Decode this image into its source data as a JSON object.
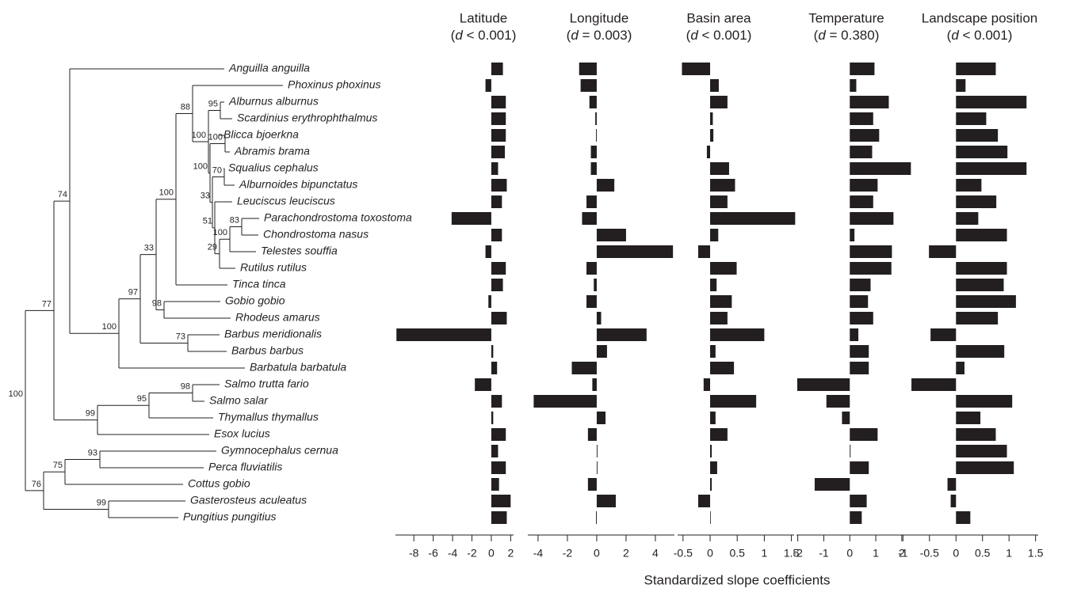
{
  "xlabel": "Standardized slope coefficients",
  "tree": {
    "support": [
      100,
      77,
      74,
      100,
      97,
      73,
      33,
      98,
      100,
      88,
      100,
      95,
      100,
      100,
      33,
      70,
      51,
      29,
      100,
      83,
      99,
      95,
      98,
      76,
      75,
      93,
      99
    ]
  },
  "chart_data": [
    {
      "type": "bar",
      "title": "Latitude",
      "subtitle": "(d < 0.001)",
      "color": "#231f20",
      "categories": [
        "Anguilla anguilla",
        "Phoxinus phoxinus",
        "Alburnus alburnus",
        "Scardinius erythrophthalmus",
        "Blicca bjoerkna",
        "Abramis brama",
        "Squalius cephalus",
        "Alburnoides bipunctatus",
        "Leuciscus leuciscus",
        "Parachondrostoma toxostoma",
        "Chondrostoma nasus",
        "Telestes souffia",
        "Rutilus rutilus",
        "Tinca tinca",
        "Gobio gobio",
        "Rhodeus amarus",
        "Barbus meridionalis",
        "Barbus barbus",
        "Barbatula barbatula",
        "Salmo trutta fario",
        "Salmo salar",
        "Thymallus thymallus",
        "Esox lucius",
        "Gymnocephalus cernua",
        "Perca fluviatilis",
        "Cottus gobio",
        "Gasterosteus aculeatus",
        "Pungitius pungitius"
      ],
      "values": [
        1.2,
        -0.6,
        1.5,
        1.5,
        1.5,
        1.4,
        0.7,
        1.6,
        1.1,
        -4.1,
        1.1,
        -0.6,
        1.5,
        1.2,
        -0.3,
        1.6,
        -9.8,
        0.2,
        0.6,
        -1.7,
        1.1,
        0.2,
        1.5,
        0.7,
        1.5,
        0.8,
        2.0,
        1.6
      ],
      "xlim": [
        -9.9,
        2.3
      ],
      "xticks": [
        -8,
        -6,
        -4,
        -2,
        0,
        2
      ]
    },
    {
      "type": "bar",
      "title": "Longitude",
      "subtitle": "(d = 0.003)",
      "color": "#231f20",
      "categories": [
        "Anguilla anguilla",
        "Phoxinus phoxinus",
        "Alburnus alburnus",
        "Scardinius erythrophthalmus",
        "Blicca bjoerkna",
        "Abramis brama",
        "Squalius cephalus",
        "Alburnoides bipunctatus",
        "Leuciscus leuciscus",
        "Parachondrostoma toxostoma",
        "Chondrostoma nasus",
        "Telestes souffia",
        "Rutilus rutilus",
        "Tinca tinca",
        "Gobio gobio",
        "Rhodeus amarus",
        "Barbus meridionalis",
        "Barbus barbus",
        "Barbatula barbatula",
        "Salmo trutta fario",
        "Salmo salar",
        "Thymallus thymallus",
        "Esox lucius",
        "Gymnocephalus cernua",
        "Perca fluviatilis",
        "Cottus gobio",
        "Gasterosteus aculeatus",
        "Pungitius pungitius"
      ],
      "values": [
        -1.2,
        -1.1,
        -0.5,
        -0.1,
        -0.05,
        -0.4,
        -0.4,
        1.2,
        -0.7,
        -1.0,
        2.0,
        5.2,
        -0.7,
        -0.2,
        -0.7,
        0.3,
        3.4,
        0.7,
        -1.7,
        -0.3,
        -4.3,
        0.6,
        -0.6,
        0.05,
        0.05,
        -0.6,
        1.3,
        -0.05
      ],
      "xlim": [
        -4.7,
        5.3
      ],
      "xticks": [
        -4,
        -2,
        0,
        2,
        4
      ]
    },
    {
      "type": "bar",
      "title": "Basin area",
      "subtitle": "(d < 0.001)",
      "color": "#231f20",
      "categories": [
        "Anguilla anguilla",
        "Phoxinus phoxinus",
        "Alburnus alburnus",
        "Scardinius erythrophthalmus",
        "Blicca bjoerkna",
        "Abramis brama",
        "Squalius cephalus",
        "Alburnoides bipunctatus",
        "Leuciscus leuciscus",
        "Parachondrostoma toxostoma",
        "Chondrostoma nasus",
        "Telestes souffia",
        "Rutilus rutilus",
        "Tinca tinca",
        "Gobio gobio",
        "Rhodeus amarus",
        "Barbus meridionalis",
        "Barbus barbus",
        "Barbatula barbatula",
        "Salmo trutta fario",
        "Salmo salar",
        "Thymallus thymallus",
        "Esox lucius",
        "Gymnocephalus cernua",
        "Perca fluviatilis",
        "Cottus gobio",
        "Gasterosteus aculeatus",
        "Pungitius pungitius"
      ],
      "values": [
        -0.52,
        0.16,
        0.32,
        0.05,
        0.06,
        -0.06,
        0.35,
        0.46,
        0.32,
        1.57,
        0.15,
        -0.22,
        0.49,
        0.12,
        0.4,
        0.32,
        1.0,
        0.1,
        0.44,
        -0.12,
        0.85,
        0.1,
        0.32,
        0.03,
        0.13,
        0.03,
        -0.22,
        0.01
      ],
      "xlim": [
        -0.6,
        1.55
      ],
      "xticks": [
        -0.5,
        0,
        0.5,
        1,
        1.5
      ]
    },
    {
      "type": "bar",
      "title": "Temperature",
      "subtitle": "(d = 0.380)",
      "color": "#231f20",
      "categories": [
        "Anguilla anguilla",
        "Phoxinus phoxinus",
        "Alburnus alburnus",
        "Scardinius erythrophthalmus",
        "Blicca bjoerkna",
        "Abramis brama",
        "Squalius cephalus",
        "Alburnoides bipunctatus",
        "Leuciscus leuciscus",
        "Parachondrostoma toxostoma",
        "Chondrostoma nasus",
        "Telestes souffia",
        "Rutilus rutilus",
        "Tinca tinca",
        "Gobio gobio",
        "Rhodeus amarus",
        "Barbus meridionalis",
        "Barbus barbus",
        "Barbatula barbatula",
        "Salmo trutta fario",
        "Salmo salar",
        "Thymallus thymallus",
        "Esox lucius",
        "Gymnocephalus cernua",
        "Perca fluviatilis",
        "Cottus gobio",
        "Gasterosteus aculeatus",
        "Pungitius pungitius"
      ],
      "values": [
        0.95,
        0.25,
        1.5,
        0.9,
        1.13,
        0.86,
        2.35,
        1.07,
        0.9,
        1.68,
        0.18,
        1.62,
        1.6,
        0.8,
        0.7,
        0.9,
        0.33,
        0.73,
        0.73,
        -2.02,
        -0.9,
        -0.3,
        1.07,
        0.03,
        0.73,
        -1.35,
        0.65,
        0.46
      ],
      "xlim": [
        -2.05,
        2.4
      ],
      "xticks": [
        -2,
        -1,
        0,
        1,
        2
      ]
    },
    {
      "type": "bar",
      "title": "Landscape position",
      "subtitle": "(d < 0.001)",
      "color": "#231f20",
      "categories": [
        "Anguilla anguilla",
        "Phoxinus phoxinus",
        "Alburnus alburnus",
        "Scardinius erythrophthalmus",
        "Blicca bjoerkna",
        "Abramis brama",
        "Squalius cephalus",
        "Alburnoides bipunctatus",
        "Leuciscus leuciscus",
        "Parachondrostoma toxostoma",
        "Chondrostoma nasus",
        "Telestes souffia",
        "Rutilus rutilus",
        "Tinca tinca",
        "Gobio gobio",
        "Rhodeus amarus",
        "Barbus meridionalis",
        "Barbus barbus",
        "Barbatula barbatula",
        "Salmo trutta fario",
        "Salmo salar",
        "Thymallus thymallus",
        "Esox lucius",
        "Gymnocephalus cernua",
        "Perca fluviatilis",
        "Cottus gobio",
        "Gasterosteus aculeatus",
        "Pungitius pungitius"
      ],
      "values": [
        0.75,
        0.18,
        1.33,
        0.57,
        0.79,
        0.97,
        1.33,
        0.48,
        0.76,
        0.42,
        0.96,
        -0.51,
        0.96,
        0.9,
        1.13,
        0.79,
        -0.48,
        0.91,
        0.16,
        -0.84,
        1.06,
        0.46,
        0.75,
        0.96,
        1.09,
        -0.16,
        -0.1,
        0.27
      ],
      "xlim": [
        -1.05,
        1.55
      ],
      "xticks": [
        -1,
        -0.5,
        0,
        0.5,
        1,
        1.5
      ]
    }
  ]
}
